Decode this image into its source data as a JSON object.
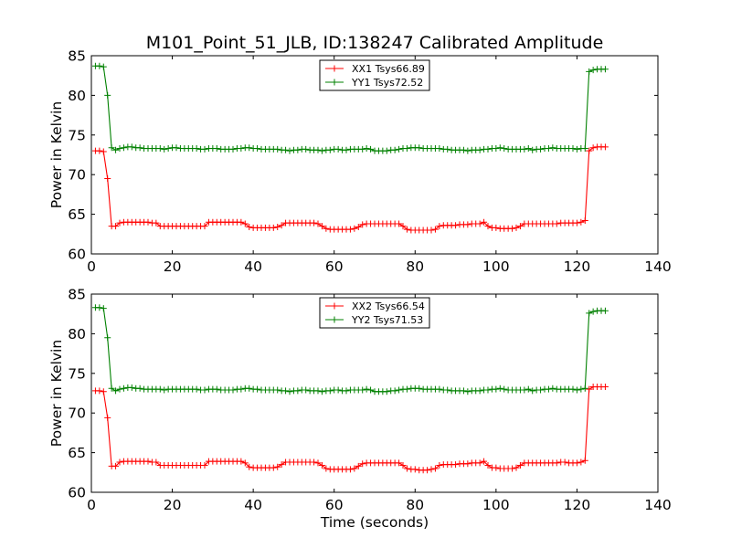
{
  "title": "M101_Point_51_JLB, ID:138247 Calibrated Amplitude",
  "chart_data": [
    {
      "type": "line",
      "ylabel": "Power in Kelvin",
      "xlabel": "",
      "xlim": [
        0,
        140
      ],
      "ylim": [
        60,
        85
      ],
      "xticks": [
        0,
        20,
        40,
        60,
        80,
        100,
        120,
        140
      ],
      "yticks": [
        60,
        65,
        70,
        75,
        80,
        85
      ],
      "grid": false,
      "legend_position": "upper center",
      "series": [
        {
          "name": "XX1 Tsys66.89",
          "color": "#ff0000",
          "marker": "+",
          "x": [
            1,
            2,
            3,
            4,
            5,
            6,
            7,
            8,
            9,
            10,
            11,
            12,
            13,
            14,
            15,
            16,
            17,
            18,
            19,
            20,
            21,
            22,
            23,
            24,
            25,
            26,
            27,
            28,
            29,
            30,
            31,
            32,
            33,
            34,
            35,
            36,
            37,
            38,
            39,
            40,
            41,
            42,
            43,
            44,
            45,
            46,
            47,
            48,
            49,
            50,
            51,
            52,
            53,
            54,
            55,
            56,
            57,
            58,
            59,
            60,
            61,
            62,
            63,
            64,
            65,
            66,
            67,
            68,
            69,
            70,
            71,
            72,
            73,
            74,
            75,
            76,
            77,
            78,
            79,
            80,
            81,
            82,
            83,
            84,
            85,
            86,
            87,
            88,
            89,
            90,
            91,
            92,
            93,
            94,
            95,
            96,
            97,
            98,
            99,
            100,
            101,
            102,
            103,
            104,
            105,
            106,
            107,
            108,
            109,
            110,
            111,
            112,
            113,
            114,
            115,
            116,
            117,
            118,
            119,
            120,
            121,
            122,
            123,
            124,
            125,
            126,
            127
          ],
          "y": [
            73.0,
            73.0,
            72.9,
            69.5,
            63.5,
            63.5,
            63.9,
            64.0,
            64.0,
            64.0,
            64.0,
            64.0,
            64.0,
            64.0,
            63.9,
            63.9,
            63.5,
            63.5,
            63.5,
            63.5,
            63.5,
            63.5,
            63.5,
            63.5,
            63.5,
            63.5,
            63.5,
            63.5,
            64.0,
            64.0,
            64.0,
            64.0,
            64.0,
            64.0,
            64.0,
            64.0,
            64.0,
            63.8,
            63.4,
            63.3,
            63.3,
            63.3,
            63.3,
            63.3,
            63.3,
            63.4,
            63.6,
            63.9,
            63.9,
            63.9,
            63.9,
            63.9,
            63.9,
            63.9,
            63.9,
            63.8,
            63.5,
            63.2,
            63.1,
            63.1,
            63.1,
            63.1,
            63.1,
            63.1,
            63.2,
            63.4,
            63.7,
            63.8,
            63.8,
            63.8,
            63.8,
            63.8,
            63.8,
            63.8,
            63.8,
            63.8,
            63.5,
            63.1,
            63.0,
            63.0,
            63.0,
            63.0,
            63.0,
            63.0,
            63.1,
            63.5,
            63.6,
            63.6,
            63.6,
            63.6,
            63.7,
            63.7,
            63.7,
            63.8,
            63.8,
            63.8,
            64.0,
            63.5,
            63.3,
            63.3,
            63.2,
            63.2,
            63.2,
            63.2,
            63.3,
            63.5,
            63.8,
            63.8,
            63.8,
            63.8,
            63.8,
            63.8,
            63.8,
            63.8,
            63.8,
            63.9,
            63.9,
            63.9,
            63.9,
            63.9,
            64.0,
            64.2,
            73.0,
            73.4,
            73.5,
            73.5,
            73.5
          ]
        },
        {
          "name": "YY1 Tsys72.52",
          "color": "#008000",
          "marker": "+",
          "x": [
            1,
            2,
            3,
            4,
            5,
            6,
            7,
            8,
            9,
            10,
            11,
            12,
            13,
            14,
            15,
            16,
            17,
            18,
            19,
            20,
            21,
            22,
            23,
            24,
            25,
            26,
            27,
            28,
            29,
            30,
            31,
            32,
            33,
            34,
            35,
            36,
            37,
            38,
            39,
            40,
            41,
            42,
            43,
            44,
            45,
            46,
            47,
            48,
            49,
            50,
            51,
            52,
            53,
            54,
            55,
            56,
            57,
            58,
            59,
            60,
            61,
            62,
            63,
            64,
            65,
            66,
            67,
            68,
            69,
            70,
            71,
            72,
            73,
            74,
            75,
            76,
            77,
            78,
            79,
            80,
            81,
            82,
            83,
            84,
            85,
            86,
            87,
            88,
            89,
            90,
            91,
            92,
            93,
            94,
            95,
            96,
            97,
            98,
            99,
            100,
            101,
            102,
            103,
            104,
            105,
            106,
            107,
            108,
            109,
            110,
            111,
            112,
            113,
            114,
            115,
            116,
            117,
            118,
            119,
            120,
            121,
            122,
            123,
            124,
            125,
            126,
            127
          ],
          "y": [
            83.7,
            83.7,
            83.6,
            80.0,
            73.4,
            73.1,
            73.3,
            73.4,
            73.5,
            73.5,
            73.4,
            73.4,
            73.3,
            73.3,
            73.3,
            73.3,
            73.3,
            73.2,
            73.3,
            73.4,
            73.4,
            73.3,
            73.3,
            73.3,
            73.3,
            73.3,
            73.2,
            73.2,
            73.3,
            73.3,
            73.3,
            73.2,
            73.2,
            73.2,
            73.2,
            73.3,
            73.3,
            73.4,
            73.4,
            73.3,
            73.3,
            73.2,
            73.2,
            73.2,
            73.2,
            73.2,
            73.1,
            73.1,
            73.0,
            73.1,
            73.1,
            73.2,
            73.2,
            73.1,
            73.1,
            73.1,
            73.0,
            73.1,
            73.1,
            73.2,
            73.2,
            73.1,
            73.1,
            73.2,
            73.2,
            73.2,
            73.2,
            73.3,
            73.2,
            73.0,
            73.0,
            73.0,
            73.0,
            73.1,
            73.1,
            73.2,
            73.3,
            73.3,
            73.4,
            73.4,
            73.4,
            73.3,
            73.3,
            73.3,
            73.3,
            73.3,
            73.2,
            73.2,
            73.1,
            73.1,
            73.1,
            73.1,
            73.0,
            73.1,
            73.1,
            73.1,
            73.2,
            73.2,
            73.3,
            73.3,
            73.4,
            73.3,
            73.2,
            73.2,
            73.2,
            73.2,
            73.2,
            73.3,
            73.1,
            73.2,
            73.2,
            73.3,
            73.3,
            73.4,
            73.3,
            73.3,
            73.3,
            73.3,
            73.3,
            73.2,
            73.3,
            73.3,
            83.0,
            83.2,
            83.3,
            83.3,
            83.3
          ]
        }
      ]
    },
    {
      "type": "line",
      "ylabel": "Power in Kelvin",
      "xlabel": "Time (seconds)",
      "xlim": [
        0,
        140
      ],
      "ylim": [
        60,
        85
      ],
      "xticks": [
        0,
        20,
        40,
        60,
        80,
        100,
        120,
        140
      ],
      "yticks": [
        60,
        65,
        70,
        75,
        80,
        85
      ],
      "grid": false,
      "legend_position": "upper center",
      "series": [
        {
          "name": "XX2 Tsys66.54",
          "color": "#ff0000",
          "marker": "+",
          "x": [
            1,
            2,
            3,
            4,
            5,
            6,
            7,
            8,
            9,
            10,
            11,
            12,
            13,
            14,
            15,
            16,
            17,
            18,
            19,
            20,
            21,
            22,
            23,
            24,
            25,
            26,
            27,
            28,
            29,
            30,
            31,
            32,
            33,
            34,
            35,
            36,
            37,
            38,
            39,
            40,
            41,
            42,
            43,
            44,
            45,
            46,
            47,
            48,
            49,
            50,
            51,
            52,
            53,
            54,
            55,
            56,
            57,
            58,
            59,
            60,
            61,
            62,
            63,
            64,
            65,
            66,
            67,
            68,
            69,
            70,
            71,
            72,
            73,
            74,
            75,
            76,
            77,
            78,
            79,
            80,
            81,
            82,
            83,
            84,
            85,
            86,
            87,
            88,
            89,
            90,
            91,
            92,
            93,
            94,
            95,
            96,
            97,
            98,
            99,
            100,
            101,
            102,
            103,
            104,
            105,
            106,
            107,
            108,
            109,
            110,
            111,
            112,
            113,
            114,
            115,
            116,
            117,
            118,
            119,
            120,
            121,
            122,
            123,
            124,
            125,
            126,
            127
          ],
          "y": [
            72.8,
            72.8,
            72.7,
            69.4,
            63.3,
            63.3,
            63.8,
            63.9,
            63.9,
            63.9,
            63.9,
            63.9,
            63.9,
            63.9,
            63.8,
            63.8,
            63.4,
            63.4,
            63.4,
            63.4,
            63.4,
            63.4,
            63.4,
            63.4,
            63.4,
            63.4,
            63.4,
            63.4,
            63.9,
            63.9,
            63.9,
            63.9,
            63.9,
            63.9,
            63.9,
            63.9,
            63.9,
            63.7,
            63.2,
            63.1,
            63.1,
            63.1,
            63.1,
            63.1,
            63.1,
            63.2,
            63.5,
            63.8,
            63.8,
            63.8,
            63.8,
            63.8,
            63.8,
            63.8,
            63.8,
            63.7,
            63.4,
            63.0,
            62.9,
            62.9,
            62.9,
            62.9,
            62.9,
            62.9,
            63.0,
            63.3,
            63.6,
            63.7,
            63.7,
            63.7,
            63.7,
            63.7,
            63.7,
            63.7,
            63.7,
            63.7,
            63.4,
            63.0,
            62.9,
            62.9,
            62.8,
            62.8,
            62.8,
            62.9,
            63.0,
            63.4,
            63.5,
            63.5,
            63.5,
            63.5,
            63.6,
            63.6,
            63.6,
            63.7,
            63.7,
            63.7,
            63.9,
            63.4,
            63.1,
            63.1,
            63.0,
            63.0,
            63.0,
            63.0,
            63.1,
            63.4,
            63.7,
            63.7,
            63.7,
            63.7,
            63.7,
            63.7,
            63.7,
            63.7,
            63.7,
            63.8,
            63.8,
            63.7,
            63.7,
            63.7,
            63.8,
            64.0,
            73.0,
            73.3,
            73.3,
            73.3,
            73.3
          ]
        },
        {
          "name": "YY2 Tsys71.53",
          "color": "#008000",
          "marker": "+",
          "x": [
            1,
            2,
            3,
            4,
            5,
            6,
            7,
            8,
            9,
            10,
            11,
            12,
            13,
            14,
            15,
            16,
            17,
            18,
            19,
            20,
            21,
            22,
            23,
            24,
            25,
            26,
            27,
            28,
            29,
            30,
            31,
            32,
            33,
            34,
            35,
            36,
            37,
            38,
            39,
            40,
            41,
            42,
            43,
            44,
            45,
            46,
            47,
            48,
            49,
            50,
            51,
            52,
            53,
            54,
            55,
            56,
            57,
            58,
            59,
            60,
            61,
            62,
            63,
            64,
            65,
            66,
            67,
            68,
            69,
            70,
            71,
            72,
            73,
            74,
            75,
            76,
            77,
            78,
            79,
            80,
            81,
            82,
            83,
            84,
            85,
            86,
            87,
            88,
            89,
            90,
            91,
            92,
            93,
            94,
            95,
            96,
            97,
            98,
            99,
            100,
            101,
            102,
            103,
            104,
            105,
            106,
            107,
            108,
            109,
            110,
            111,
            112,
            113,
            114,
            115,
            116,
            117,
            118,
            119,
            120,
            121,
            122,
            123,
            124,
            125,
            126,
            127
          ],
          "y": [
            83.3,
            83.3,
            83.2,
            79.5,
            73.1,
            72.8,
            73.0,
            73.1,
            73.2,
            73.2,
            73.1,
            73.1,
            73.0,
            73.0,
            73.0,
            73.0,
            73.0,
            72.9,
            73.0,
            73.0,
            73.0,
            73.0,
            73.0,
            73.0,
            73.0,
            73.0,
            72.9,
            72.9,
            73.0,
            73.0,
            73.0,
            72.9,
            72.9,
            72.9,
            72.9,
            73.0,
            73.0,
            73.1,
            73.1,
            73.0,
            73.0,
            72.9,
            72.9,
            72.9,
            72.9,
            72.9,
            72.8,
            72.8,
            72.7,
            72.8,
            72.8,
            72.9,
            72.9,
            72.8,
            72.8,
            72.8,
            72.7,
            72.8,
            72.8,
            72.9,
            72.9,
            72.8,
            72.8,
            72.9,
            72.9,
            72.9,
            72.9,
            73.0,
            72.9,
            72.7,
            72.7,
            72.7,
            72.7,
            72.8,
            72.8,
            72.9,
            73.0,
            73.0,
            73.1,
            73.1,
            73.1,
            73.0,
            73.0,
            73.0,
            73.0,
            73.0,
            72.9,
            72.9,
            72.8,
            72.8,
            72.8,
            72.8,
            72.7,
            72.8,
            72.8,
            72.8,
            72.9,
            72.9,
            73.0,
            73.0,
            73.1,
            73.0,
            72.9,
            72.9,
            72.9,
            72.9,
            72.9,
            73.0,
            72.8,
            72.9,
            72.9,
            73.0,
            73.0,
            73.1,
            73.0,
            73.0,
            73.0,
            73.0,
            73.0,
            72.9,
            73.0,
            73.1,
            82.6,
            82.8,
            82.9,
            82.9,
            82.9
          ]
        }
      ]
    }
  ]
}
